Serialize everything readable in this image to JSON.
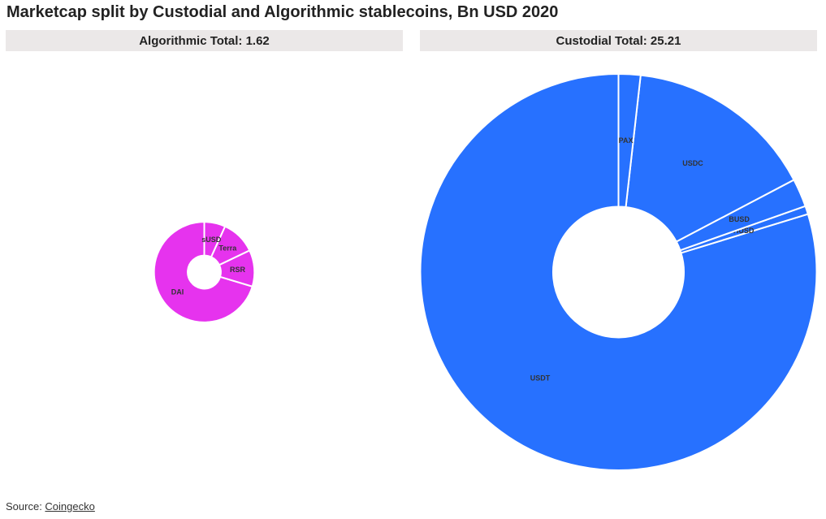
{
  "title": "Marketcap split by Custodial and Algorithmic stablecoins, Bn USD 2020",
  "source": {
    "prefix": "Source: ",
    "link_text": "Coingecko"
  },
  "chart_data": [
    {
      "type": "pie",
      "header": "Algorithmic Total: 1.62",
      "total": 1.62,
      "color": "#e633ee",
      "categories": [
        "DAI",
        "RSR",
        "Terra",
        "sUSD"
      ],
      "values": [
        1.14,
        0.19,
        0.18,
        0.11
      ]
    },
    {
      "type": "pie",
      "header": "Custodial Total: 25.21",
      "total": 25.21,
      "color": "#2771ff",
      "categories": [
        "USDT",
        "HUSD",
        "BUSD",
        "USDC",
        "PAX"
      ],
      "values": [
        20.1,
        0.17,
        0.58,
        3.91,
        0.45
      ]
    }
  ]
}
